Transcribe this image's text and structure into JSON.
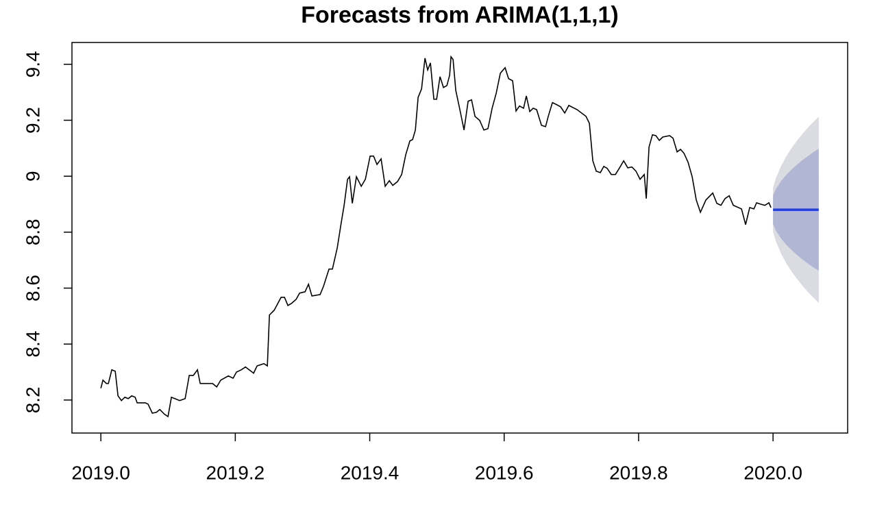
{
  "chart_data": {
    "type": "line",
    "title": "Forecasts from ARIMA(1,1,1)",
    "x": [
      2019.0,
      2019.0031,
      2019.0082,
      2019.0112,
      2019.0163,
      2019.0214,
      2019.0255,
      2019.0306,
      2019.0357,
      2019.0408,
      2019.0459,
      2019.051,
      2019.054,
      2019.0663,
      2019.0703,
      2019.0765,
      2019.0826,
      2019.0877,
      2019.0948,
      2019.0999,
      2019.105,
      2019.1172,
      2019.1254,
      2019.1315,
      2019.1376,
      2019.1437,
      2019.1478,
      2019.1662,
      2019.1723,
      2019.1784,
      2019.1896,
      2019.1967,
      2019.2018,
      2019.209,
      2019.2151,
      2019.2273,
      2019.2324,
      2019.2426,
      2019.2477,
      2019.2508,
      2019.2579,
      2019.2681,
      2019.2732,
      2019.2783,
      2019.2834,
      2019.2905,
      2019.2956,
      2019.3038,
      2019.3089,
      2019.314,
      2019.3262,
      2019.3313,
      2019.3394,
      2019.3445,
      2019.3517,
      2019.3568,
      2019.3619,
      2019.367,
      2019.37,
      2019.3741,
      2019.3802,
      2019.3874,
      2019.3935,
      2019.4006,
      2019.4057,
      2019.4108,
      2019.4169,
      2019.423,
      2019.4292,
      2019.4343,
      2019.4414,
      2019.4475,
      2019.4536,
      2019.4597,
      2019.4638,
      2019.4679,
      2019.472,
      2019.4771,
      2019.4822,
      2019.4862,
      2019.4903,
      2019.4954,
      2019.4995,
      2019.5046,
      2019.5097,
      2019.5148,
      2019.5189,
      2019.5209,
      2019.524,
      2019.528,
      2019.5341,
      2019.5403,
      2019.5464,
      2019.5515,
      2019.5566,
      2019.5637,
      2019.5698,
      2019.5759,
      2019.5821,
      2019.5882,
      2019.5943,
      2019.6014,
      2019.6065,
      2019.6126,
      2019.6177,
      2019.6228,
      2019.6289,
      2019.633,
      2019.6381,
      2019.6432,
      2019.6483,
      2019.6555,
      2019.6616,
      2019.6656,
      2019.6718,
      2019.6779,
      2019.684,
      2019.6901,
      2019.6962,
      2019.7085,
      2019.7217,
      2019.7268,
      2019.7319,
      2019.737,
      2019.7431,
      2019.7482,
      2019.7533,
      2019.7594,
      2019.7655,
      2019.7717,
      2019.7778,
      2019.7839,
      2019.79,
      2019.7961,
      2019.8022,
      2019.8084,
      2019.8114,
      2019.8155,
      2019.8206,
      2019.8257,
      2019.8308,
      2019.8359,
      2019.8461,
      2019.8512,
      2019.8573,
      2019.8624,
      2019.8675,
      2019.8736,
      2019.8797,
      2019.8858,
      2019.892,
      2019.9001,
      2019.9103,
      2019.9164,
      2019.9225,
      2019.9286,
      2019.9348,
      2019.9409,
      2019.9531,
      2019.9592,
      2019.9653,
      2019.9715,
      2019.9755,
      2019.9817,
      2019.9878,
      2019.9939,
      2019.9969
    ],
    "values": [
      8.242,
      8.271,
      8.259,
      8.259,
      8.308,
      8.303,
      8.215,
      8.198,
      8.21,
      8.205,
      8.215,
      8.21,
      8.19,
      8.19,
      8.185,
      8.153,
      8.156,
      8.166,
      8.149,
      8.141,
      8.21,
      8.198,
      8.205,
      8.288,
      8.288,
      8.308,
      8.259,
      8.259,
      8.247,
      8.271,
      8.286,
      8.278,
      8.3,
      8.308,
      8.318,
      8.296,
      8.322,
      8.33,
      8.322,
      8.504,
      8.521,
      8.567,
      8.567,
      8.538,
      8.545,
      8.56,
      8.582,
      8.587,
      8.614,
      8.572,
      8.577,
      8.607,
      8.668,
      8.668,
      8.744,
      8.822,
      8.896,
      8.989,
      8.998,
      8.903,
      8.998,
      8.964,
      8.989,
      9.072,
      9.072,
      9.042,
      9.062,
      8.964,
      8.984,
      8.967,
      8.981,
      9.006,
      9.077,
      9.126,
      9.131,
      9.165,
      9.282,
      9.312,
      9.422,
      9.38,
      9.405,
      9.275,
      9.275,
      9.356,
      9.317,
      9.324,
      9.361,
      9.427,
      9.417,
      9.307,
      9.238,
      9.165,
      9.268,
      9.273,
      9.214,
      9.199,
      9.165,
      9.17,
      9.243,
      9.297,
      9.368,
      9.388,
      9.349,
      9.341,
      9.233,
      9.251,
      9.243,
      9.287,
      9.231,
      9.243,
      9.238,
      9.182,
      9.177,
      9.214,
      9.263,
      9.256,
      9.248,
      9.226,
      9.253,
      9.238,
      9.214,
      9.189,
      9.055,
      9.018,
      9.013,
      9.035,
      9.028,
      9.006,
      9.006,
      9.03,
      9.055,
      9.03,
      9.033,
      9.018,
      8.989,
      9.006,
      8.92,
      9.104,
      9.148,
      9.145,
      9.128,
      9.14,
      9.145,
      9.136,
      9.087,
      9.096,
      9.082,
      9.05,
      8.998,
      8.915,
      8.871,
      8.915,
      8.94,
      8.903,
      8.896,
      8.92,
      8.93,
      8.896,
      8.883,
      8.827,
      8.888,
      8.883,
      8.905,
      8.9,
      8.896,
      8.905,
      8.888
    ],
    "color": "#000000",
    "forecast": {
      "x": [
        2020.0,
        2020.004,
        2020.012,
        2020.02,
        2020.028,
        2020.036,
        2020.044,
        2020.052,
        2020.06,
        2020.068
      ],
      "values": [
        8.88,
        8.88,
        8.88,
        8.88,
        8.88,
        8.88,
        8.88,
        8.88,
        8.88,
        8.88
      ],
      "lower80": [
        8.829,
        8.807,
        8.777,
        8.754,
        8.735,
        8.718,
        8.702,
        8.688,
        8.674,
        8.662
      ],
      "upper80": [
        8.931,
        8.953,
        8.983,
        9.006,
        9.025,
        9.042,
        9.058,
        9.072,
        9.086,
        9.098
      ],
      "lower95": [
        8.801,
        8.769,
        8.723,
        8.688,
        8.658,
        8.632,
        8.608,
        8.586,
        8.566,
        8.547
      ],
      "upper95": [
        8.959,
        8.991,
        9.037,
        9.072,
        9.102,
        9.128,
        9.152,
        9.174,
        9.194,
        9.213
      ],
      "color": "#1a3cf0",
      "color80": "#b1b6d5",
      "color95": "#dbdbe2"
    },
    "xlim": [
      2018.957,
      2020.111
    ],
    "ylim": [
      8.082,
      9.478
    ],
    "xticks": [
      {
        "value": 2019.0,
        "label": "2019.0"
      },
      2019.2,
      2019.4,
      2019.6,
      2019.8,
      {
        "value": 2020.0,
        "label": "2020.0"
      }
    ],
    "yticks": [
      8.2,
      8.4,
      8.6,
      8.8,
      9.0,
      9.2,
      9.4
    ]
  }
}
